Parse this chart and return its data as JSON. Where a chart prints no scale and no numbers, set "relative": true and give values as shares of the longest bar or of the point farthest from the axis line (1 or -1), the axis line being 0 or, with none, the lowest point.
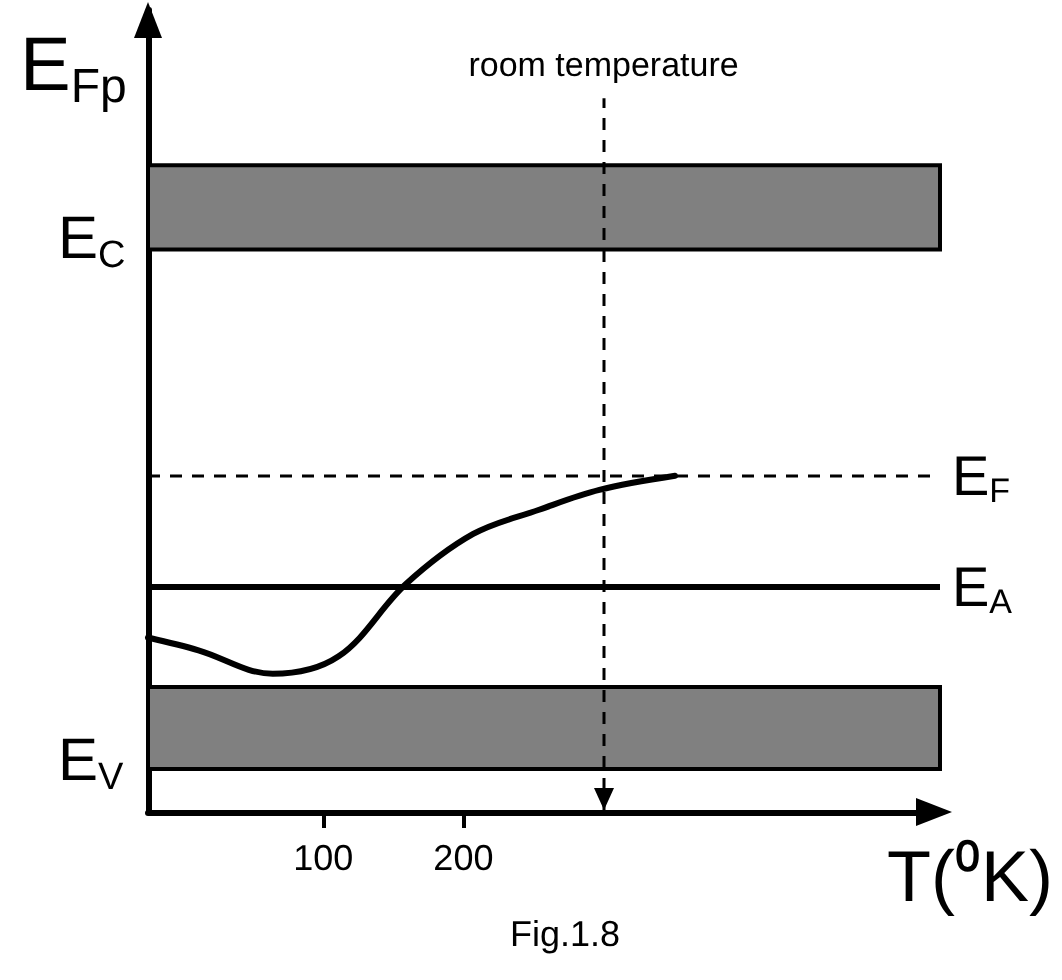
{
  "chart_data": {
    "type": "line",
    "relative": true,
    "ylabel": "E$_{Fp}$",
    "xlabel": "T(⁰K)",
    "annotations": [
      "Fig.1.8"
    ],
    "x": [
      -25,
      11,
      64,
      111,
      159,
      207,
      254,
      297,
      351
    ],
    "series": [
      {
        "color": "#000000",
        "values": [
          0.519,
          0.481,
          0.411,
          0.463,
          0.678,
          0.827,
          0.899,
          0.958,
          1.0
        ]
      }
    ],
    "xlim": [
      -25,
      540
    ],
    "xticks": [
      100,
      200
    ],
    "marker": "none",
    "ref_lines": [
      {
        "axis": "y",
        "value": 1.0,
        "label": "E$_{F}$",
        "line_style": "dashed",
        "color": "#000000"
      },
      {
        "axis": "y",
        "value": 0.674,
        "label": "E$_{A}$",
        "line_style": "solid",
        "color": "#000000"
      },
      {
        "axis": "x",
        "value": 300,
        "label": "room temperature",
        "line_style": "dashed",
        "color": "#000000"
      }
    ],
    "bands": [
      {
        "axis": "y",
        "from": 1.673,
        "to": 1.924,
        "label": "E$_{C}$",
        "color": "#808080"
      },
      {
        "axis": "y",
        "from": 0.128,
        "to": 0.372,
        "label": "E$_{V}$",
        "color": "#808080"
      }
    ]
  }
}
